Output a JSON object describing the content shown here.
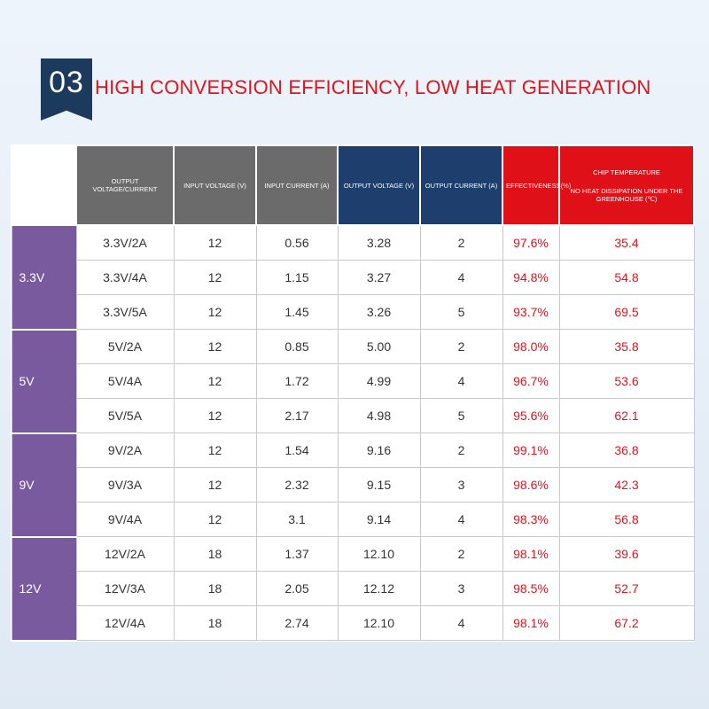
{
  "header": {
    "number": "03",
    "title": "HIGH CONVERSION EFFICIENCY, LOW HEAT GENERATION"
  },
  "table": {
    "headers": {
      "output_voltage_current": "OUTPUT VOLTAGE/CURRENT",
      "input_voltage": "INPUT VOLTAGE (V)",
      "input_current": "INPUT CURRENT (A)",
      "output_voltage": "OUTPUT VOLTAGE (V)",
      "output_current": "OUTPUT CURRENT (A)",
      "effectiveness": "EFFECTIVENESS(%)",
      "chip_temp": "CHIP TEMPERATURE",
      "chip_temp_sub": "NO HEAT DISSIPATION UNDER THE GREENHOUSE (℃)"
    },
    "groups": [
      {
        "label": "3.3V",
        "rows": [
          {
            "spec": "3.3V/2A",
            "vin": "12",
            "iin": "0.56",
            "vout": "3.28",
            "iout": "2",
            "eff": "97.6%",
            "temp": "35.4"
          },
          {
            "spec": "3.3V/4A",
            "vin": "12",
            "iin": "1.15",
            "vout": "3.27",
            "iout": "4",
            "eff": "94.8%",
            "temp": "54.8"
          },
          {
            "spec": "3.3V/5A",
            "vin": "12",
            "iin": "1.45",
            "vout": "3.26",
            "iout": "5",
            "eff": "93.7%",
            "temp": "69.5"
          }
        ]
      },
      {
        "label": "5V",
        "rows": [
          {
            "spec": "5V/2A",
            "vin": "12",
            "iin": "0.85",
            "vout": "5.00",
            "iout": "2",
            "eff": "98.0%",
            "temp": "35.8"
          },
          {
            "spec": "5V/4A",
            "vin": "12",
            "iin": "1.72",
            "vout": "4.99",
            "iout": "4",
            "eff": "96.7%",
            "temp": "53.6"
          },
          {
            "spec": "5V/5A",
            "vin": "12",
            "iin": "2.17",
            "vout": "4.98",
            "iout": "5",
            "eff": "95.6%",
            "temp": "62.1"
          }
        ]
      },
      {
        "label": "9V",
        "rows": [
          {
            "spec": "9V/2A",
            "vin": "12",
            "iin": "1.54",
            "vout": "9.16",
            "iout": "2",
            "eff": "99.1%",
            "temp": "36.8"
          },
          {
            "spec": "9V/3A",
            "vin": "12",
            "iin": "2.32",
            "vout": "9.15",
            "iout": "3",
            "eff": "98.6%",
            "temp": "42.3"
          },
          {
            "spec": "9V/4A",
            "vin": "12",
            "iin": "3.1",
            "vout": "9.14",
            "iout": "4",
            "eff": "98.3%",
            "temp": "56.8"
          }
        ]
      },
      {
        "label": "12V",
        "rows": [
          {
            "spec": "12V/2A",
            "vin": "18",
            "iin": "1.37",
            "vout": "12.10",
            "iout": "2",
            "eff": "98.1%",
            "temp": "39.6"
          },
          {
            "spec": "12V/3A",
            "vin": "18",
            "iin": "2.05",
            "vout": "12.12",
            "iout": "3",
            "eff": "98.5%",
            "temp": "52.7"
          },
          {
            "spec": "12V/4A",
            "vin": "18",
            "iin": "2.74",
            "vout": "12.10",
            "iout": "4",
            "eff": "98.1%",
            "temp": "67.2"
          }
        ]
      }
    ]
  },
  "colors": {
    "badge": "#1b3a5c",
    "title": "#e0141c",
    "header_gray": "#6b6b6b",
    "header_blue": "#1e3f6d",
    "header_red": "#e01018",
    "group_purple": "#7a5a9e"
  }
}
